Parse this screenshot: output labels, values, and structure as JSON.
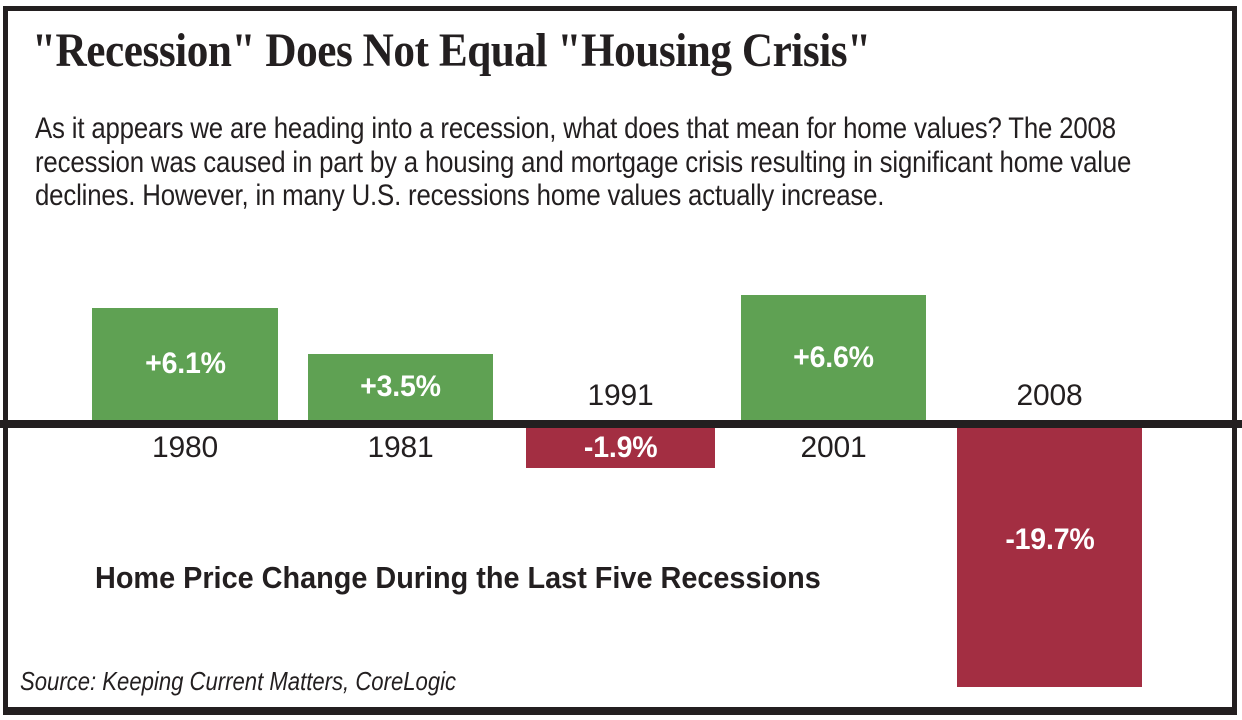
{
  "colors": {
    "ink": "#231f20",
    "background": "#ffffff"
  },
  "header": {
    "title": "\"Recession\" Does Not Equal \"Housing Crisis\"",
    "intro_lines": [
      "As it appears we are heading into a recession, what does that mean for home values? The 2008",
      "recession was caused in part by a housing and mortgage crisis resulting in significant home value",
      "declines. However, in many U.S. recessions home values actually increase."
    ]
  },
  "chart_data": {
    "type": "bar",
    "title": "Home Price Change During the Last Five Recessions",
    "categories": [
      "1980",
      "1981",
      "1991",
      "2001",
      "2008"
    ],
    "values": [
      6.1,
      3.5,
      -1.9,
      6.6,
      -19.7
    ],
    "bar_labels": [
      "+6.1%",
      "+3.5%",
      "-1.9%",
      "+6.6%",
      "-19.7%"
    ],
    "positive_color": "#5fa153",
    "negative_color": "#a32e42",
    "baseline_color": "#231f20",
    "xlabel": "",
    "ylabel": "",
    "legend": "none",
    "gridlines": false,
    "baseline": 0,
    "note": "2008 bar is visually truncated in the original graphic"
  },
  "source": {
    "label": "Source: Keeping Current Matters, CoreLogic"
  }
}
